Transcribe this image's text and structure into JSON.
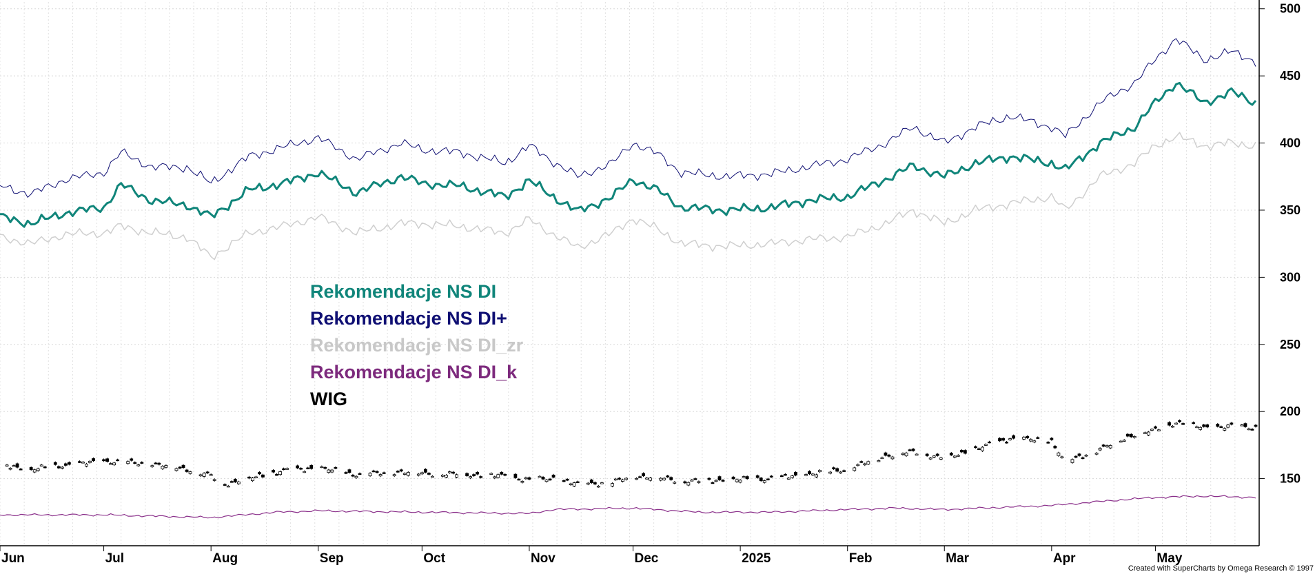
{
  "chart_data": {
    "type": "line",
    "title": "",
    "ylim": [
      100,
      505
    ],
    "y_ticks": [
      150,
      200,
      250,
      300,
      350,
      400,
      450,
      500
    ],
    "x_range": [
      "2024-06-01",
      "2025-05-31"
    ],
    "x_tick_labels": [
      {
        "label": "Jun",
        "date": "2024-06-01"
      },
      {
        "label": "Jul",
        "date": "2024-07-01"
      },
      {
        "label": "Aug",
        "date": "2024-08-01"
      },
      {
        "label": "Sep",
        "date": "2024-09-01"
      },
      {
        "label": "Oct",
        "date": "2024-10-01"
      },
      {
        "label": "Nov",
        "date": "2024-11-01"
      },
      {
        "label": "Dec",
        "date": "2024-12-01"
      },
      {
        "label": "2025",
        "date": "2025-01-01"
      },
      {
        "label": "Feb",
        "date": "2025-02-01"
      },
      {
        "label": "Mar",
        "date": "2025-03-01"
      },
      {
        "label": "Apr",
        "date": "2025-04-01"
      },
      {
        "label": "May",
        "date": "2025-05-01"
      }
    ],
    "grid": true,
    "y_axis_side": "right",
    "legend_position": "center-left",
    "series": [
      {
        "name": "Rekomendacje NS DI",
        "color": "#10857a",
        "style": "line",
        "width": 3,
        "x": [
          "2024-06-01",
          "2024-06-10",
          "2024-06-20",
          "2024-07-01",
          "2024-07-06",
          "2024-07-15",
          "2024-07-25",
          "2024-08-01",
          "2024-08-12",
          "2024-08-22",
          "2024-09-01",
          "2024-09-12",
          "2024-09-25",
          "2024-10-01",
          "2024-10-12",
          "2024-10-25",
          "2024-11-01",
          "2024-11-08",
          "2024-11-15",
          "2024-11-25",
          "2024-12-01",
          "2024-12-08",
          "2024-12-15",
          "2024-12-28",
          "2025-01-10",
          "2025-01-20",
          "2025-02-01",
          "2025-02-12",
          "2025-02-20",
          "2025-03-01",
          "2025-03-10",
          "2025-03-20",
          "2025-04-01",
          "2025-04-05",
          "2025-04-15",
          "2025-04-25",
          "2025-05-01",
          "2025-05-07",
          "2025-05-15",
          "2025-05-23",
          "2025-05-30"
        ],
        "y": [
          345,
          340,
          348,
          352,
          369,
          357,
          354,
          345,
          365,
          370,
          378,
          363,
          375,
          370,
          368,
          360,
          372,
          360,
          349,
          360,
          373,
          365,
          352,
          350,
          352,
          357,
          360,
          373,
          383,
          375,
          385,
          390,
          385,
          380,
          400,
          412,
          430,
          445,
          430,
          438,
          430
        ]
      },
      {
        "name": "Rekomendacje NS DI+",
        "color": "#0f0f73",
        "style": "line",
        "width": 1,
        "x": [
          "2024-06-01",
          "2024-06-10",
          "2024-06-20",
          "2024-07-01",
          "2024-07-06",
          "2024-07-15",
          "2024-07-25",
          "2024-08-01",
          "2024-08-12",
          "2024-08-22",
          "2024-09-01",
          "2024-09-12",
          "2024-09-25",
          "2024-10-01",
          "2024-10-12",
          "2024-10-25",
          "2024-11-01",
          "2024-11-08",
          "2024-11-15",
          "2024-11-25",
          "2024-12-01",
          "2024-12-08",
          "2024-12-15",
          "2024-12-28",
          "2025-01-10",
          "2025-01-20",
          "2025-02-01",
          "2025-02-12",
          "2025-02-20",
          "2025-03-01",
          "2025-03-10",
          "2025-03-20",
          "2025-04-01",
          "2025-04-05",
          "2025-04-15",
          "2025-04-25",
          "2025-05-01",
          "2025-05-07",
          "2025-05-15",
          "2025-05-23",
          "2025-05-30"
        ],
        "y": [
          368,
          362,
          373,
          378,
          393,
          382,
          382,
          370,
          390,
          397,
          404,
          388,
          400,
          395,
          393,
          385,
          398,
          386,
          375,
          385,
          400,
          392,
          378,
          375,
          377,
          382,
          388,
          400,
          412,
          400,
          412,
          420,
          412,
          405,
          430,
          445,
          462,
          478,
          462,
          468,
          461
        ]
      },
      {
        "name": "Rekomendacje NS DI_zr",
        "color": "#cfcfcf",
        "style": "line",
        "width": 1.5,
        "x": [
          "2024-06-01",
          "2024-06-10",
          "2024-06-20",
          "2024-07-01",
          "2024-07-06",
          "2024-07-15",
          "2024-07-25",
          "2024-08-01",
          "2024-08-12",
          "2024-08-22",
          "2024-09-01",
          "2024-09-12",
          "2024-09-25",
          "2024-10-01",
          "2024-10-12",
          "2024-10-25",
          "2024-11-01",
          "2024-11-08",
          "2024-11-15",
          "2024-11-25",
          "2024-12-01",
          "2024-12-08",
          "2024-12-15",
          "2024-12-28",
          "2025-01-10",
          "2025-01-20",
          "2025-02-01",
          "2025-02-12",
          "2025-02-20",
          "2025-03-01",
          "2025-03-10",
          "2025-03-20",
          "2025-04-01",
          "2025-04-05",
          "2025-04-15",
          "2025-04-25",
          "2025-05-01",
          "2025-05-07",
          "2025-05-15",
          "2025-05-23",
          "2025-05-30"
        ],
        "y": [
          330,
          325,
          332,
          333,
          338,
          333,
          330,
          315,
          333,
          338,
          345,
          333,
          340,
          340,
          338,
          333,
          343,
          332,
          322,
          333,
          344,
          336,
          325,
          323,
          325,
          328,
          330,
          340,
          350,
          340,
          350,
          355,
          360,
          350,
          375,
          385,
          398,
          405,
          398,
          400,
          398
        ]
      },
      {
        "name": "Rekomendacje NS DI_k",
        "color": "#8a2f8a",
        "style": "line",
        "width": 1.2,
        "x": [
          "2024-06-01",
          "2024-07-01",
          "2024-08-01",
          "2024-08-20",
          "2024-09-01",
          "2024-10-01",
          "2024-11-01",
          "2024-11-08",
          "2024-12-01",
          "2024-12-20",
          "2025-01-10",
          "2025-02-01",
          "2025-02-15",
          "2025-03-01",
          "2025-04-01",
          "2025-04-20",
          "2025-05-01",
          "2025-05-15",
          "2025-05-30"
        ],
        "y": [
          123,
          123,
          121,
          125,
          126,
          125,
          124,
          127,
          128,
          125,
          125,
          127,
          128,
          127,
          130,
          134,
          136,
          137,
          136
        ]
      },
      {
        "name": "WIG",
        "color": "#000000",
        "style": "candlestick",
        "x": [
          "2024-06-01",
          "2024-06-10",
          "2024-06-20",
          "2024-07-01",
          "2024-07-15",
          "2024-07-25",
          "2024-08-01",
          "2024-08-05",
          "2024-08-12",
          "2024-08-22",
          "2024-09-01",
          "2024-09-12",
          "2024-09-25",
          "2024-10-01",
          "2024-10-12",
          "2024-10-25",
          "2024-11-01",
          "2024-11-08",
          "2024-11-15",
          "2024-11-25",
          "2024-12-01",
          "2024-12-08",
          "2024-12-15",
          "2024-12-28",
          "2025-01-10",
          "2025-01-20",
          "2025-02-01",
          "2025-02-12",
          "2025-02-20",
          "2025-03-01",
          "2025-03-10",
          "2025-03-20",
          "2025-04-01",
          "2025-04-05",
          "2025-04-15",
          "2025-04-25",
          "2025-05-01",
          "2025-05-07",
          "2025-05-15",
          "2025-05-23",
          "2025-05-30"
        ],
        "y": [
          160,
          157,
          160,
          163,
          161,
          157,
          152,
          146,
          150,
          156,
          158,
          153,
          155,
          154,
          153,
          152,
          149,
          150,
          146,
          147,
          152,
          151,
          148,
          149,
          150,
          153,
          157,
          167,
          170,
          165,
          172,
          180,
          178,
          162,
          172,
          183,
          186,
          192,
          188,
          189,
          188
        ]
      }
    ]
  },
  "legend": [
    {
      "label": "Rekomendacje NS DI",
      "color": "#10857a"
    },
    {
      "label": "Rekomendacje NS DI+",
      "color": "#0f0f73"
    },
    {
      "label": "Rekomendacje NS DI_zr",
      "color": "#c8c8c8"
    },
    {
      "label": "Rekomendacje NS DI_k",
      "color": "#7d2a7d"
    },
    {
      "label": "WIG",
      "color": "#000000"
    }
  ],
  "credit": "Created with SuperCharts by Omega Research © 1997"
}
